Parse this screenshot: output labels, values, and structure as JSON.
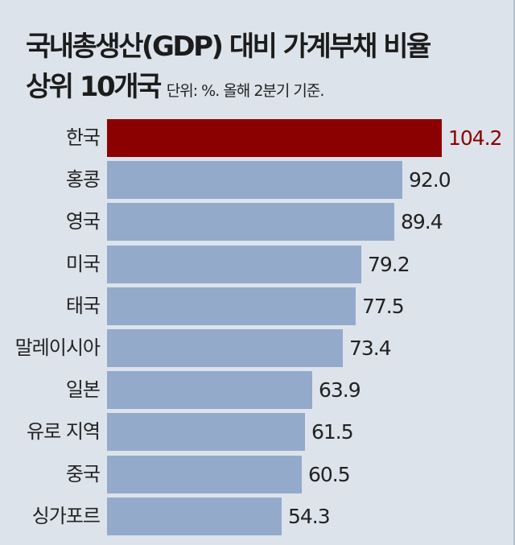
{
  "header": {
    "title_line1": "국내총생산(GDP) 대비 가계부채 비율",
    "title_line2": "상위 10개국",
    "unit_note": "단위: %. 올해 2분기 기준."
  },
  "colors": {
    "highlight": "#8b0000",
    "bar": "#93aacb",
    "background": "#dde3ea"
  },
  "chart_data": {
    "type": "bar",
    "orientation": "horizontal",
    "title": "국내총생산(GDP) 대비 가계부채 비율 상위 10개국",
    "subtitle": "단위: %. 올해 2분기 기준.",
    "xlabel": "",
    "ylabel": "",
    "categories": [
      "한국",
      "홍콩",
      "영국",
      "미국",
      "태국",
      "말레이시아",
      "일본",
      "유로 지역",
      "중국",
      "싱가포르"
    ],
    "values": [
      104.2,
      92.0,
      89.4,
      79.2,
      77.5,
      73.4,
      63.9,
      61.5,
      60.5,
      54.3
    ],
    "labels": [
      "104.2",
      "92.0",
      "89.4",
      "79.2",
      "77.5",
      "73.4",
      "63.9",
      "61.5",
      "60.5",
      "54.3"
    ],
    "highlight_index": 0,
    "grid": false,
    "legend": null
  }
}
